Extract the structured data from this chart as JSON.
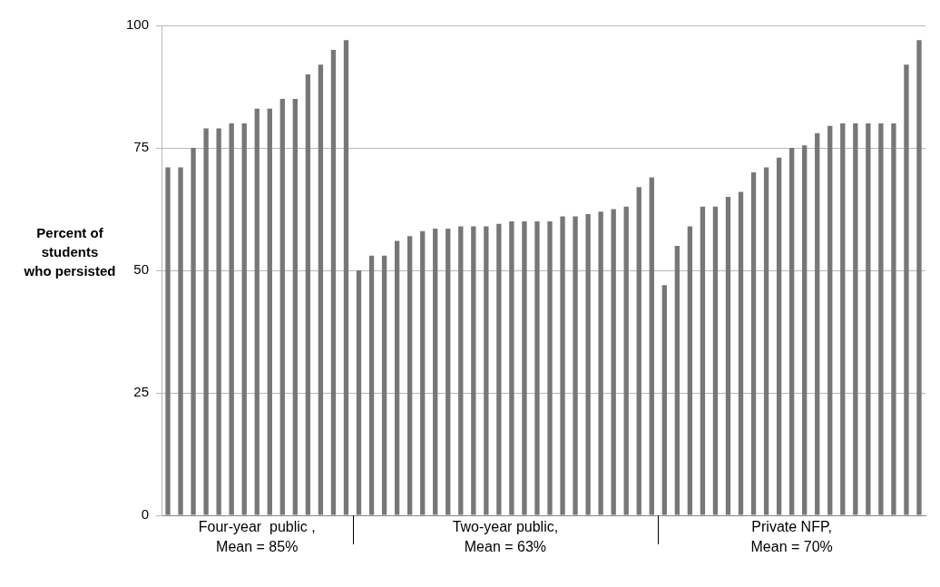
{
  "chart_data": {
    "type": "bar",
    "ylabel": "Percent of\nstudents\nwho persisted",
    "categories": [
      null,
      null,
      null,
      null,
      null,
      null,
      null,
      null,
      null,
      null,
      null,
      null,
      null,
      null,
      null,
      null,
      null,
      null,
      null,
      null,
      null,
      null,
      null,
      null,
      null,
      null,
      null,
      null,
      null,
      null,
      null,
      null,
      null,
      null,
      null,
      null,
      null,
      null,
      null,
      null,
      null,
      null,
      null,
      null,
      null,
      null,
      null,
      null,
      null,
      null,
      null,
      null,
      null,
      null,
      null,
      null,
      null,
      null,
      null,
      null
    ],
    "series": [
      {
        "name": "Four-year  public ,\nMean = 85%",
        "color": "#777777",
        "values": [
          71,
          71,
          75,
          79,
          79,
          80,
          80,
          83,
          83,
          85,
          85,
          90,
          92,
          95,
          97,
          null,
          null,
          null,
          null,
          null,
          null,
          null,
          null,
          null,
          null,
          null,
          null,
          null,
          null,
          null,
          null,
          null,
          null,
          null,
          null,
          null,
          null,
          null,
          null,
          null,
          null,
          null,
          null,
          null,
          null,
          null,
          null,
          null,
          null,
          null,
          null,
          null,
          null,
          null,
          null,
          null,
          null,
          null,
          null,
          null
        ]
      },
      {
        "name": "Two-year public,\nMean = 63%",
        "color": "#777777",
        "values": [
          null,
          null,
          null,
          null,
          null,
          null,
          null,
          null,
          null,
          null,
          null,
          null,
          null,
          null,
          null,
          50,
          53,
          53,
          56,
          57,
          58,
          58.5,
          58.5,
          59,
          59,
          59,
          59.5,
          60,
          60,
          60,
          60,
          61,
          61,
          61.5,
          62,
          62.5,
          63,
          67,
          69,
          null,
          null,
          null,
          null,
          null,
          null,
          null,
          null,
          null,
          null,
          null,
          null,
          null,
          null,
          null,
          null,
          null,
          null,
          null,
          null,
          null
        ]
      },
      {
        "name": "Private NFP,\nMean = 70%",
        "color": "#777777",
        "values": [
          null,
          null,
          null,
          null,
          null,
          null,
          null,
          null,
          null,
          null,
          null,
          null,
          null,
          null,
          null,
          null,
          null,
          null,
          null,
          null,
          null,
          null,
          null,
          null,
          null,
          null,
          null,
          null,
          null,
          null,
          null,
          null,
          null,
          null,
          null,
          null,
          null,
          null,
          null,
          47,
          55,
          59,
          63,
          63,
          65,
          66,
          70,
          71,
          73,
          75,
          75.5,
          78,
          79.5,
          80,
          80,
          80,
          80,
          80,
          92,
          97
        ]
      }
    ],
    "ylim": [
      0,
      100
    ],
    "yticks": [
      0,
      25,
      50,
      75,
      100
    ],
    "grid": "y",
    "legend": false
  }
}
